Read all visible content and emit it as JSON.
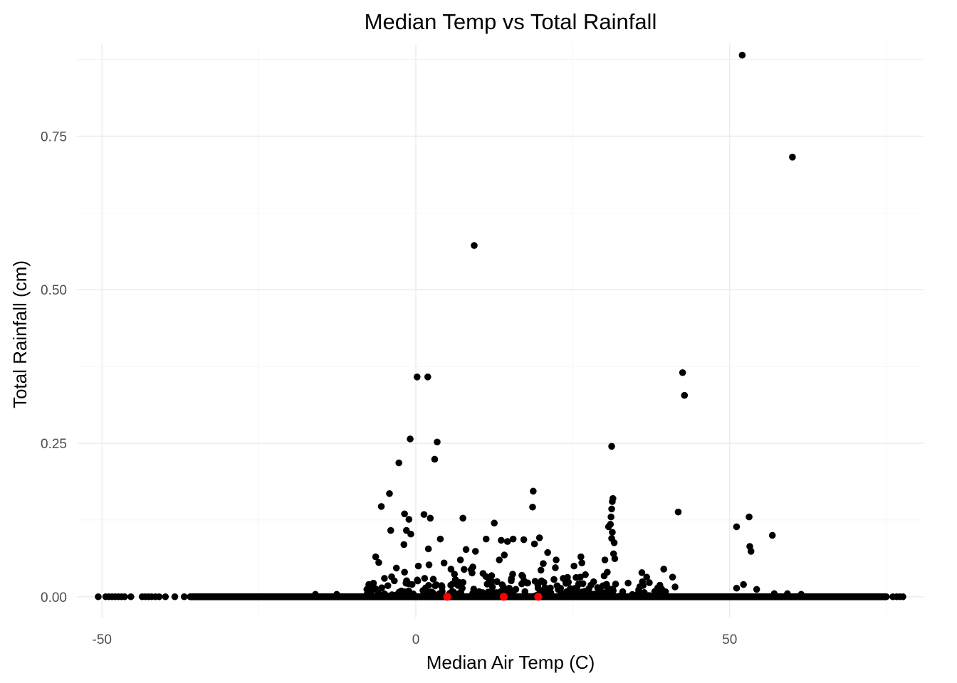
{
  "chart_data": {
    "type": "scatter",
    "title": "Median Temp vs Total Rainfall",
    "xlabel": "Median Air Temp (C)",
    "ylabel": "Total Rainfall (cm)",
    "xlim": [
      -54,
      81
    ],
    "ylim": [
      -0.035,
      0.9
    ],
    "x_ticks": [
      -50,
      0,
      50
    ],
    "x_tick_labels": [
      "-50",
      "0",
      "50"
    ],
    "y_ticks": [
      0,
      0.25,
      0.5,
      0.75
    ],
    "y_tick_labels": [
      "0.00",
      "0.25",
      "0.50",
      "0.75"
    ],
    "grid": true,
    "legend": "none",
    "colors": {
      "points": "#000000",
      "highlight": "#ff0000"
    },
    "zero_rainfall_band": {
      "x_min": -50,
      "x_max": 77,
      "y": 0
    },
    "highlight_points": [
      {
        "x": 5,
        "y": 0.0
      },
      {
        "x": 14,
        "y": 0.0
      },
      {
        "x": 19.5,
        "y": 0.0
      }
    ],
    "points": [
      {
        "x": 52,
        "y": 0.882
      },
      {
        "x": 60,
        "y": 0.716
      },
      {
        "x": 9.3,
        "y": 0.572
      },
      {
        "x": 42.5,
        "y": 0.365
      },
      {
        "x": 42.8,
        "y": 0.328
      },
      {
        "x": 0.2,
        "y": 0.358
      },
      {
        "x": 1.9,
        "y": 0.358
      },
      {
        "x": -0.9,
        "y": 0.257
      },
      {
        "x": 3.4,
        "y": 0.252
      },
      {
        "x": 31.2,
        "y": 0.245
      },
      {
        "x": 3.0,
        "y": 0.224
      },
      {
        "x": -2.7,
        "y": 0.218
      },
      {
        "x": 18.7,
        "y": 0.172
      },
      {
        "x": -4.2,
        "y": 0.168
      },
      {
        "x": 31.4,
        "y": 0.16
      },
      {
        "x": 31.3,
        "y": 0.155
      },
      {
        "x": -5.5,
        "y": 0.147
      },
      {
        "x": 18.6,
        "y": 0.146
      },
      {
        "x": 31.2,
        "y": 0.143
      },
      {
        "x": 41.8,
        "y": 0.138
      },
      {
        "x": -1.8,
        "y": 0.135
      },
      {
        "x": 1.3,
        "y": 0.134
      },
      {
        "x": 2.3,
        "y": 0.128
      },
      {
        "x": 7.5,
        "y": 0.128
      },
      {
        "x": -1.1,
        "y": 0.126
      },
      {
        "x": 31.1,
        "y": 0.13
      },
      {
        "x": 53.1,
        "y": 0.13
      },
      {
        "x": 31.0,
        "y": 0.118
      },
      {
        "x": 12.5,
        "y": 0.12
      },
      {
        "x": 30.7,
        "y": 0.114
      },
      {
        "x": 51.1,
        "y": 0.114
      },
      {
        "x": -1.5,
        "y": 0.108
      },
      {
        "x": -4.0,
        "y": 0.108
      },
      {
        "x": 31.3,
        "y": 0.105
      },
      {
        "x": -0.8,
        "y": 0.102
      },
      {
        "x": 31.2,
        "y": 0.095
      },
      {
        "x": 56.8,
        "y": 0.1
      },
      {
        "x": 19.7,
        "y": 0.096
      },
      {
        "x": 3.9,
        "y": 0.094
      },
      {
        "x": 11.2,
        "y": 0.094
      },
      {
        "x": 15.5,
        "y": 0.094
      },
      {
        "x": 17.2,
        "y": 0.093
      },
      {
        "x": 13.6,
        "y": 0.092
      },
      {
        "x": 14.6,
        "y": 0.09
      },
      {
        "x": 31.6,
        "y": 0.088
      },
      {
        "x": 18.9,
        "y": 0.086
      },
      {
        "x": -1.9,
        "y": 0.085
      },
      {
        "x": 53.2,
        "y": 0.082
      },
      {
        "x": 2.0,
        "y": 0.078
      },
      {
        "x": 8.0,
        "y": 0.077
      },
      {
        "x": 53.4,
        "y": 0.074
      },
      {
        "x": 9.5,
        "y": 0.074
      },
      {
        "x": 21.0,
        "y": 0.072
      },
      {
        "x": 31.5,
        "y": 0.07
      },
      {
        "x": 31.7,
        "y": 0.062
      },
      {
        "x": 26.3,
        "y": 0.065
      },
      {
        "x": -6.4,
        "y": 0.065
      },
      {
        "x": 14.1,
        "y": 0.068
      },
      {
        "x": 7.1,
        "y": 0.06
      },
      {
        "x": 4.5,
        "y": 0.055
      },
      {
        "x": 20.3,
        "y": 0.054
      },
      {
        "x": 2.1,
        "y": 0.052
      },
      {
        "x": 25.2,
        "y": 0.05
      },
      {
        "x": 0.4,
        "y": 0.05
      },
      {
        "x": 39.5,
        "y": 0.045
      },
      {
        "x": 8.8,
        "y": 0.044
      },
      {
        "x": -1.8,
        "y": 0.04
      },
      {
        "x": 10.7,
        "y": 0.038
      },
      {
        "x": 16.9,
        "y": 0.035
      },
      {
        "x": 40.9,
        "y": 0.032
      },
      {
        "x": 26.2,
        "y": 0.032
      },
      {
        "x": -5.0,
        "y": 0.03
      },
      {
        "x": 1.4,
        "y": 0.03
      },
      {
        "x": 30.0,
        "y": 0.034
      },
      {
        "x": 37.2,
        "y": 0.023
      },
      {
        "x": -7.5,
        "y": 0.02
      },
      {
        "x": 52.2,
        "y": 0.02
      },
      {
        "x": 27.9,
        "y": 0.019
      },
      {
        "x": 23.9,
        "y": 0.022
      },
      {
        "x": 51.1,
        "y": 0.014
      },
      {
        "x": 41.3,
        "y": 0.016
      },
      {
        "x": -7.8,
        "y": 0.012
      },
      {
        "x": 22.5,
        "y": 0.018
      },
      {
        "x": 12.2,
        "y": 0.016
      },
      {
        "x": 54.3,
        "y": 0.012
      },
      {
        "x": 6.3,
        "y": 0.028
      },
      {
        "x": 15.2,
        "y": 0.026
      },
      {
        "x": 5.6,
        "y": 0.045
      },
      {
        "x": 13.3,
        "y": 0.06
      },
      {
        "x": -0.6,
        "y": 0.02
      },
      {
        "x": 11.6,
        "y": 0.03
      },
      {
        "x": 30.5,
        "y": 0.04
      },
      {
        "x": -16.0,
        "y": 0.004
      },
      {
        "x": -12.6,
        "y": 0.004
      },
      {
        "x": 57.1,
        "y": 0.005
      },
      {
        "x": 59.2,
        "y": 0.005
      },
      {
        "x": 61.4,
        "y": 0.004
      }
    ],
    "zero_rainfall_points_x": [
      -50.6,
      -49.4,
      -48.9,
      -48.4,
      -47.9,
      -47.4,
      -46.9,
      -46.4,
      -45.4,
      -43.6,
      -43.1,
      -42.6,
      -42.1,
      -41.5,
      -40.9,
      -39.9,
      -38.4,
      -36.9,
      76.0,
      76.6,
      77.1,
      77.6
    ],
    "dense_cluster": {
      "x_range": [
        -8,
        40
      ],
      "y_range": [
        0,
        0.06
      ],
      "count": 260,
      "concentration": 0.012
    }
  }
}
